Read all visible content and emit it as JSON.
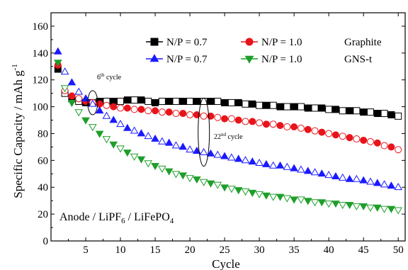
{
  "chart_data": {
    "type": "scatter",
    "xlabel": "Cycle",
    "ylabel": "Specific Capacity / mAh g",
    "ylabel_sup": "-1",
    "xlim": [
      0,
      51
    ],
    "ylim": [
      0,
      170
    ],
    "xticks": [
      5,
      10,
      15,
      20,
      25,
      30,
      35,
      40,
      45,
      50
    ],
    "yticks": [
      0,
      20,
      40,
      60,
      80,
      100,
      120,
      140,
      160
    ],
    "grid": false,
    "legend_placement": "top-right",
    "legend_groups": [
      "Graphite",
      "GNS-t"
    ],
    "series": [
      {
        "name": "N/P = 0.7",
        "group": "Graphite",
        "color": "#000000",
        "marker": "square",
        "x": [
          1,
          2,
          3,
          4,
          5,
          6,
          7,
          8,
          9,
          10,
          11,
          12,
          13,
          14,
          15,
          16,
          17,
          18,
          19,
          20,
          21,
          22,
          23,
          24,
          25,
          26,
          27,
          28,
          29,
          30,
          31,
          32,
          33,
          34,
          35,
          36,
          37,
          38,
          39,
          40,
          41,
          42,
          43,
          44,
          45,
          46,
          47,
          48,
          49,
          50
        ],
        "y": [
          128,
          110,
          106,
          104,
          103,
          103,
          104,
          104,
          104,
          104,
          105,
          105,
          105,
          104,
          103,
          104,
          104,
          104,
          104,
          104,
          104,
          104,
          104,
          104,
          103,
          103,
          103,
          102,
          102,
          101,
          101,
          101,
          100,
          100,
          100,
          100,
          99,
          99,
          99,
          98,
          98,
          97,
          97,
          97,
          96,
          96,
          95,
          95,
          94,
          93
        ]
      },
      {
        "name": "N/P = 1.0",
        "group": "Graphite",
        "color": "#e8141b",
        "marker": "circle",
        "x": [
          1,
          2,
          3,
          4,
          5,
          6,
          7,
          8,
          9,
          10,
          11,
          12,
          13,
          14,
          15,
          16,
          17,
          18,
          19,
          20,
          21,
          22,
          23,
          24,
          25,
          26,
          27,
          28,
          29,
          30,
          31,
          32,
          33,
          34,
          35,
          36,
          37,
          38,
          39,
          40,
          41,
          42,
          43,
          44,
          45,
          46,
          47,
          48,
          49,
          50
        ],
        "y": [
          131,
          112,
          108,
          106,
          104,
          103,
          102,
          101,
          100,
          99,
          99,
          98,
          98,
          97,
          97,
          96,
          96,
          95,
          95,
          94,
          94,
          93,
          93,
          92,
          91,
          91,
          90,
          89,
          89,
          88,
          87,
          87,
          86,
          85,
          85,
          84,
          83,
          82,
          81,
          80,
          79,
          78,
          77,
          76,
          75,
          74,
          73,
          71,
          70,
          68
        ]
      },
      {
        "name": "N/P = 0.7",
        "group": "GNS-t",
        "color": "#1a1aff",
        "marker": "triangle-up",
        "x": [
          1,
          2,
          3,
          4,
          5,
          6,
          7,
          8,
          9,
          10,
          11,
          12,
          13,
          14,
          15,
          16,
          17,
          18,
          19,
          20,
          21,
          22,
          23,
          24,
          25,
          26,
          27,
          28,
          29,
          30,
          31,
          32,
          33,
          34,
          35,
          36,
          37,
          38,
          39,
          40,
          41,
          42,
          43,
          44,
          45,
          46,
          47,
          48,
          49,
          50
        ],
        "y": [
          141,
          126,
          118,
          111,
          106,
          102,
          97,
          93,
          90,
          87,
          84,
          82,
          80,
          78,
          76,
          74,
          73,
          71,
          70,
          68,
          67,
          66,
          65,
          64,
          63,
          62,
          61,
          60,
          59,
          58,
          57,
          56,
          56,
          55,
          54,
          53,
          52,
          51,
          50,
          49,
          48,
          47,
          46,
          46,
          45,
          44,
          43,
          42,
          41,
          40
        ]
      },
      {
        "name": "N/P = 1.0",
        "group": "GNS-t",
        "color": "#1f9e2a",
        "marker": "triangle-down",
        "x": [
          1,
          2,
          3,
          4,
          5,
          6,
          7,
          8,
          9,
          10,
          11,
          12,
          13,
          14,
          15,
          16,
          17,
          18,
          19,
          20,
          21,
          22,
          23,
          24,
          25,
          26,
          27,
          28,
          29,
          30,
          31,
          32,
          33,
          34,
          35,
          36,
          37,
          38,
          39,
          40,
          41,
          42,
          43,
          44,
          45,
          46,
          47,
          48,
          49,
          50
        ],
        "y": [
          133,
          114,
          103,
          96,
          90,
          85,
          80,
          76,
          72,
          69,
          66,
          63,
          61,
          58,
          56,
          54,
          52,
          50,
          49,
          47,
          46,
          44,
          43,
          42,
          40,
          39,
          38,
          37,
          36,
          35,
          34,
          33,
          33,
          32,
          31,
          31,
          30,
          29,
          29,
          28,
          28,
          27,
          27,
          26,
          26,
          25,
          25,
          24,
          24,
          23
        ]
      }
    ],
    "annotations": [
      {
        "text": "6",
        "sup": "th",
        "rest": " cycle",
        "x": 6
      },
      {
        "text": "22",
        "sup": "nd",
        "rest": " cycle",
        "x": 22
      }
    ],
    "inset_text": {
      "part1": "Anode / LiPF",
      "sub": "6",
      "part2": " / LiFePO",
      "sub2": "4"
    }
  }
}
